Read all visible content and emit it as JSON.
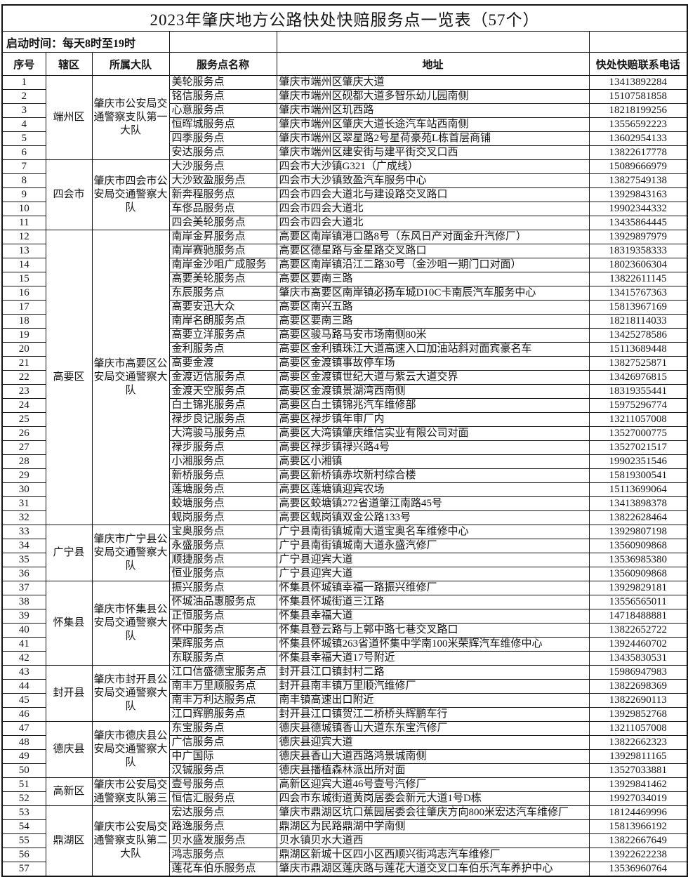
{
  "title": "2023年肇庆地方公路快处快赔服务点一览表（57个）",
  "note": "启动时间：每天8时至19时",
  "headers": {
    "no": "序号",
    "district": "辖区",
    "brigade": "所属大队",
    "service_point": "服务点名称",
    "address": "地址",
    "phone": "快处快赔联系电话"
  },
  "colors": {
    "border": "#151515",
    "text": "#141414",
    "background": "#ffffff"
  },
  "groups": [
    {
      "district": "端州区",
      "brigade": "肇庆市公安局交通警察支队第一大队",
      "rows": [
        {
          "no": "1",
          "name": "美轮服务点",
          "address": "肇庆市端州区肇庆大道",
          "phone": "13413892284"
        },
        {
          "no": "2",
          "name": "铭信服务点",
          "address": "肇庆市端州区砚都大道多智乐幼儿园南侧",
          "phone": "15107581858"
        },
        {
          "no": "3",
          "name": "心意服务点",
          "address": "肇庆市端州区玑西路",
          "phone": "18218199256"
        },
        {
          "no": "4",
          "name": "恒晖城服务点",
          "address": "肇庆市端州区肇庆大道长途汽车站西南侧",
          "phone": "13556592223"
        },
        {
          "no": "5",
          "name": "四季服务点",
          "address": "肇庆市端州区翠星路2号星荷豪苑L栋首层商铺",
          "phone": "13602954133"
        },
        {
          "no": "6",
          "name": "安达服务点",
          "address": "肇庆市端州区建安街与建平街交叉口西",
          "phone": "13822617778"
        }
      ]
    },
    {
      "district": "四会市",
      "brigade": "肇庆市四会市公安局交通警察大队",
      "rows": [
        {
          "no": "7",
          "name": "大沙服务点",
          "address": "四会市大沙镇G321（广成线）",
          "phone": "15089666979"
        },
        {
          "no": "8",
          "name": "大沙致盈服务点",
          "address": "四会市大沙镇致盈汽车服务中心",
          "phone": "13827549138"
        },
        {
          "no": "9",
          "name": "新奔程服务点",
          "address": "四会市四会大道北与建设路交叉路口",
          "phone": "13929843163"
        },
        {
          "no": "10",
          "name": "车俢品服务点",
          "address": "四会市四会大道北",
          "phone": "19902344332"
        },
        {
          "no": "11",
          "name": "四会美轮服务点",
          "address": "四会市四会大道北",
          "phone": "13435864445"
        }
      ]
    },
    {
      "district": "高要区",
      "brigade": "肇庆市高要区公安局交通警察大队",
      "rows": [
        {
          "no": "12",
          "name": "南岸金昇服务点",
          "address": "高要区南岸镇港口路8号（东风日产对面金升汽修厂）",
          "phone": "13929897979"
        },
        {
          "no": "13",
          "name": "南岸赛驰服务点",
          "address": "高要区德星路与金星路交叉路口",
          "phone": "18319358333"
        },
        {
          "no": "14",
          "name": "南岸金沙咀广成服务",
          "address": "高要区南岸镇沿江二路30号（金沙咀一期门口对面）",
          "phone": "18023606304"
        },
        {
          "no": "15",
          "name": "高要美轮服务点",
          "address": "高要区要南三路",
          "phone": "13822611145"
        },
        {
          "no": "16",
          "name": "东辰服务点",
          "address": "肇庆市高要区南岸镇必扬车城D10C卡南辰汽车服务中心",
          "phone": "13415767363"
        },
        {
          "no": "17",
          "name": "高要安迅大众",
          "address": "高要区南兴五路",
          "phone": "15813967169"
        },
        {
          "no": "18",
          "name": "南岸名朗服务点",
          "address": "高要区要南三路",
          "phone": "18218114033"
        },
        {
          "no": "19",
          "name": "高要立洋服务点",
          "address": "高要区骏马路马安市场南侧80米",
          "phone": "13425278586"
        },
        {
          "no": "20",
          "name": "金利服务点",
          "address": "高要区金利镇珠江大道高速入口加油站斜对面宾豪名车",
          "phone": "15113689448"
        },
        {
          "no": "21",
          "name": "高要金渡",
          "address": "高要区金渡镇事故停车场",
          "phone": "13827525871"
        },
        {
          "no": "22",
          "name": "金渡迈信服务点",
          "address": "高要区金渡镇世纪大道与紫云大道交界",
          "phone": "13426976815"
        },
        {
          "no": "23",
          "name": "金渡天空服务点",
          "address": "高要区金渡镇景湖湾西南侧",
          "phone": "18319355441"
        },
        {
          "no": "24",
          "name": "白土锦兆服务点",
          "address": "高要区白土镇锦兆汽车维修部",
          "phone": "15975296774"
        },
        {
          "no": "25",
          "name": "禄步良记服务点",
          "address": "高要区禄步镇年审厂内",
          "phone": "13211057008"
        },
        {
          "no": "26",
          "name": "大湾骏马服务点",
          "address": "高要区大湾镇肇庆维信实业有限公司对面",
          "phone": "13527000775"
        },
        {
          "no": "27",
          "name": "禄步服务点",
          "address": "高要区禄步镇禄兴路4号",
          "phone": "13527021517"
        },
        {
          "no": "28",
          "name": "小湘服务点",
          "address": "高要区小湘镇",
          "phone": "19902351546"
        },
        {
          "no": "29",
          "name": "新桥服务点",
          "address": "高要区新桥镇赤坎新村综合楼",
          "phone": "15819300541"
        },
        {
          "no": "30",
          "name": "莲塘服务点",
          "address": "高要区莲塘镇迎宾农场",
          "phone": "15113699064"
        },
        {
          "no": "31",
          "name": "蛟塘服务点",
          "address": "高要区蛟塘镇272省道肇江南路45号",
          "phone": "13413898378"
        },
        {
          "no": "32",
          "name": "蚬岗服务点",
          "address": "高要区蚬岗镇双金公路133号",
          "phone": "13822628464"
        }
      ]
    },
    {
      "district": "广宁县",
      "brigade": "肇庆市广宁县公安局交通警察大队",
      "rows": [
        {
          "no": "33",
          "name": "宝奥服务点",
          "address": "广宁县南街镇城南大道宝奥名车维修中心",
          "phone": "13929807198"
        },
        {
          "no": "34",
          "name": "永盛服务点",
          "address": "广宁县南街镇城南大道永盛汽修厂",
          "phone": "13560909868"
        },
        {
          "no": "35",
          "name": "顺捷服务点",
          "address": "广宁县迎宾大道",
          "phone": "13536985380"
        },
        {
          "no": "36",
          "name": "恒业服务点",
          "address": "广宁县迎宾大道",
          "phone": "13560909868"
        }
      ]
    },
    {
      "district": "怀集县",
      "brigade": "肇庆市怀集县公安局交通警察大队",
      "rows": [
        {
          "no": "37",
          "name": "振兴服务点",
          "address": "怀集县怀城镇幸福一路振兴维修厂",
          "phone": "13929829181"
        },
        {
          "no": "38",
          "name": "怀城油品惠服务点",
          "address": "怀集县怀城街道三江路",
          "phone": "13556565011"
        },
        {
          "no": "39",
          "name": "正恒服务点",
          "address": "怀集县幸福大道",
          "phone": "14718488881"
        },
        {
          "no": "40",
          "name": "怀中服务点",
          "address": "怀集县登云路与上郭中路七巷交叉路口",
          "phone": "13822652722"
        },
        {
          "no": "41",
          "name": "荣辉服务点",
          "address": "怀集县怀城镇263省道怀集中学南100米荣辉汽车维修中心",
          "phone": "13924460702"
        },
        {
          "no": "42",
          "name": "东联服务点",
          "address": "怀集县幸福大道17号附近",
          "phone": "13435830531"
        }
      ]
    },
    {
      "district": "封开县",
      "brigade": "肇庆市封开县公安局交通警察大队",
      "rows": [
        {
          "no": "43",
          "name": "江口信盛德宝服务点",
          "address": "封开县江口镇封村二路",
          "phone": "15986947983"
        },
        {
          "no": "44",
          "name": "南丰万里顺服务点",
          "address": "封开县南丰镇万里顺汽维修厂",
          "phone": "13822698369"
        },
        {
          "no": "45",
          "name": "南丰万利达服务点",
          "address": "南丰镇高速出口附近",
          "phone": "13822690113"
        },
        {
          "no": "46",
          "name": "江口辉鹏服务点",
          "address": "封开县江口镇贺江二桥桥头辉鹏车行",
          "phone": "13929852768"
        }
      ]
    },
    {
      "district": "德庆县",
      "brigade": "肇庆市德庆县公安局交通警察大队",
      "rows": [
        {
          "no": "47",
          "name": "东宝服务点",
          "address": "德庆县德城镇香山大道东东宝汽修厂",
          "phone": "13211057008"
        },
        {
          "no": "48",
          "name": "广信服务点",
          "address": "德庆县迎宾大道",
          "phone": "13822662323"
        },
        {
          "no": "49",
          "name": "中广国际",
          "address": "德庆县香山大道西路鸿景城南侧",
          "phone": "13929811165"
        },
        {
          "no": "50",
          "name": "汉铖服务点",
          "address": "德庆县播植森林派出所对面",
          "phone": "13527033881"
        }
      ]
    },
    {
      "district": "高新区",
      "brigade": "肇庆市公安局交通警察支队第三",
      "rows": [
        {
          "no": "51",
          "name": "壹号服务点",
          "address": "高新区迎宾大道46号壹号汽修厂",
          "phone": "13929841462"
        },
        {
          "no": "52",
          "name": "恒信汇服务点",
          "address": "四会市东城街道黄岗居委会新元大道1号D栋",
          "phone": "19927034019"
        }
      ]
    },
    {
      "district": "鼎湖区",
      "brigade": "肇庆市公安局交通警察支队第二大队",
      "rows": [
        {
          "no": "53",
          "name": "宏达服务点",
          "address": "肇庆市鼎湖区坑口蕉园居委会往肇庆方向800米宏达汽车维修厂",
          "phone": "18124469996"
        },
        {
          "no": "54",
          "name": "路逸服务点",
          "address": "鼎湖区为民路鼎湖中学南侧",
          "phone": "15813966192"
        },
        {
          "no": "55",
          "name": "贝水盛发服务点",
          "address": "贝水镇贝水大道西",
          "phone": "13822667649"
        },
        {
          "no": "56",
          "name": "鸿志服务点",
          "address": "鼎湖区新城十区四小区西顺兴街鸿志汽车维修厂",
          "phone": "13922622238"
        },
        {
          "no": "57",
          "name": "莲花车伯乐服务点",
          "address": "肇庆市鼎湖区莲庆路与莲花大道交叉口车伯乐汽车养护中心",
          "phone": "13536960764"
        }
      ]
    }
  ]
}
